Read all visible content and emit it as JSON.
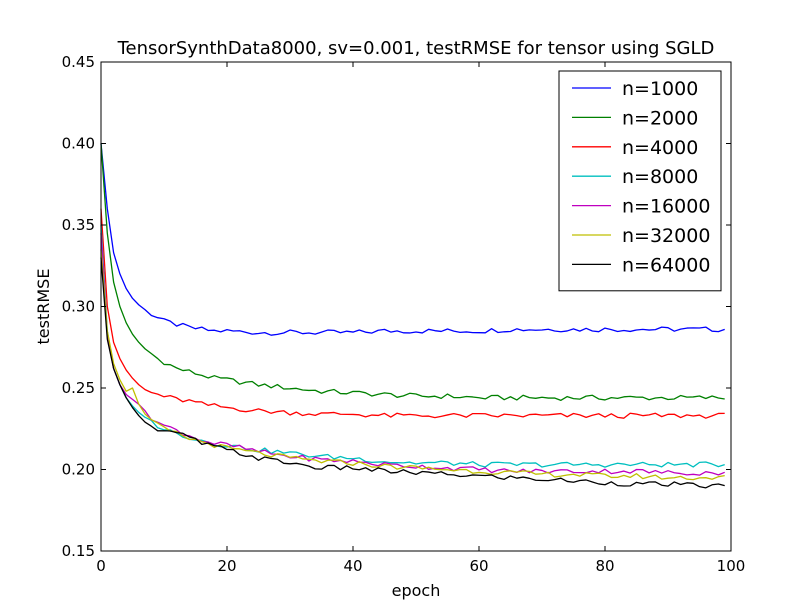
{
  "chart_data": {
    "type": "line",
    "title": "TensorSynthData8000, sv=0.001, testRMSE for tensor using SGLD",
    "xlabel": "epoch",
    "ylabel": "testRMSE",
    "xlim": [
      0,
      100
    ],
    "ylim": [
      0.15,
      0.45
    ],
    "xticks": [
      "0",
      "20",
      "40",
      "60",
      "80",
      "100"
    ],
    "yticks": [
      "0.15",
      "0.20",
      "0.25",
      "0.30",
      "0.35",
      "0.40",
      "0.45"
    ],
    "grid": false,
    "legend_position": "top-right",
    "x_points": [
      0,
      1,
      2,
      3,
      4,
      5,
      6,
      7,
      8,
      9,
      10,
      12,
      14,
      16,
      18,
      20,
      25,
      30,
      35,
      40,
      45,
      50,
      55,
      60,
      65,
      70,
      75,
      80,
      85,
      90,
      95,
      99
    ],
    "series": [
      {
        "name": "n=1000",
        "color": "#0000ff",
        "values": [
          0.4,
          0.36,
          0.333,
          0.32,
          0.311,
          0.305,
          0.301,
          0.298,
          0.295,
          0.293,
          0.291,
          0.289,
          0.287,
          0.286,
          0.285,
          0.285,
          0.284,
          0.284,
          0.284,
          0.284,
          0.285,
          0.285,
          0.285,
          0.285,
          0.286,
          0.286,
          0.286,
          0.286,
          0.286,
          0.286,
          0.286,
          0.286
        ]
      },
      {
        "name": "n=2000",
        "color": "#008000",
        "values": [
          0.4,
          0.345,
          0.315,
          0.3,
          0.29,
          0.283,
          0.278,
          0.274,
          0.271,
          0.268,
          0.266,
          0.262,
          0.26,
          0.258,
          0.256,
          0.255,
          0.252,
          0.25,
          0.248,
          0.247,
          0.246,
          0.245,
          0.245,
          0.244,
          0.244,
          0.244,
          0.244,
          0.244,
          0.244,
          0.244,
          0.244,
          0.244
        ]
      },
      {
        "name": "n=4000",
        "color": "#ff0000",
        "values": [
          0.36,
          0.3,
          0.278,
          0.268,
          0.261,
          0.256,
          0.252,
          0.249,
          0.247,
          0.246,
          0.245,
          0.243,
          0.242,
          0.24,
          0.239,
          0.238,
          0.236,
          0.235,
          0.234,
          0.234,
          0.233,
          0.233,
          0.233,
          0.233,
          0.233,
          0.233,
          0.233,
          0.233,
          0.233,
          0.233,
          0.233,
          0.233
        ]
      },
      {
        "name": "n=8000",
        "color": "#00bfbf",
        "values": [
          0.35,
          0.285,
          0.262,
          0.252,
          0.244,
          0.239,
          0.235,
          0.232,
          0.229,
          0.227,
          0.225,
          0.222,
          0.22,
          0.218,
          0.216,
          0.215,
          0.212,
          0.21,
          0.208,
          0.207,
          0.205,
          0.204,
          0.204,
          0.203,
          0.203,
          0.203,
          0.203,
          0.203,
          0.203,
          0.203,
          0.203,
          0.203
        ]
      },
      {
        "name": "n=16000",
        "color": "#bf00bf",
        "values": [
          0.345,
          0.282,
          0.262,
          0.252,
          0.246,
          0.243,
          0.24,
          0.236,
          0.232,
          0.229,
          0.227,
          0.224,
          0.221,
          0.218,
          0.216,
          0.215,
          0.211,
          0.208,
          0.206,
          0.205,
          0.203,
          0.202,
          0.201,
          0.2,
          0.199,
          0.199,
          0.199,
          0.199,
          0.199,
          0.198,
          0.198,
          0.198
        ]
      },
      {
        "name": "n=32000",
        "color": "#bfbf00",
        "values": [
          0.335,
          0.285,
          0.265,
          0.255,
          0.248,
          0.25,
          0.24,
          0.234,
          0.23,
          0.227,
          0.225,
          0.222,
          0.219,
          0.217,
          0.215,
          0.213,
          0.21,
          0.207,
          0.205,
          0.204,
          0.202,
          0.201,
          0.2,
          0.199,
          0.198,
          0.197,
          0.197,
          0.196,
          0.196,
          0.195,
          0.195,
          0.195
        ]
      },
      {
        "name": "n=64000",
        "color": "#000000",
        "values": [
          0.33,
          0.28,
          0.262,
          0.252,
          0.244,
          0.238,
          0.233,
          0.229,
          0.226,
          0.224,
          0.223,
          0.222,
          0.22,
          0.216,
          0.214,
          0.212,
          0.207,
          0.204,
          0.201,
          0.201,
          0.199,
          0.198,
          0.197,
          0.196,
          0.195,
          0.194,
          0.193,
          0.192,
          0.191,
          0.191,
          0.19,
          0.19
        ]
      }
    ]
  }
}
